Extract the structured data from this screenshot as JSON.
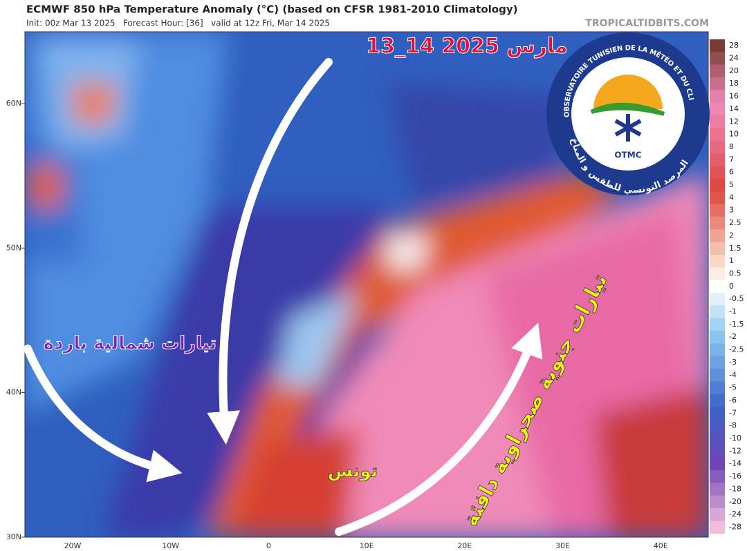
{
  "header": {
    "title": "ECMWF 850 hPa Temperature Anomaly (°C) (based on CFSR 1981-2010 Climatology)",
    "subtitle": "Init: 00z Mar 13 2025   Forecast Hour: [36]   valid at 12z Fri, Mar 14 2025",
    "source": "TROPICALTIDBITS.COM"
  },
  "map": {
    "lat_labels": [
      "60N",
      "50N",
      "40N",
      "30N"
    ],
    "lon_labels": [
      "20W",
      "10W",
      "0",
      "10E",
      "20E",
      "30E",
      "40E"
    ],
    "annotations": {
      "date": "13_14 مارس 2025",
      "cold": "تيارات شمالية باردة",
      "tunisia": "تونس",
      "warm": "تيارات جنوية صحراوية دافئة"
    }
  },
  "colorbar": {
    "labels": [
      "28",
      "24",
      "20",
      "18",
      "16",
      "14",
      "12",
      "10",
      "8",
      "7",
      "6",
      "5",
      "4",
      "3",
      "2.5",
      "2",
      "1.5",
      "1",
      "0.5",
      "0",
      "-0.5",
      "-1",
      "-1.5",
      "-2",
      "-2.5",
      "-3",
      "-4",
      "-5",
      "-6",
      "-7",
      "-8",
      "-10",
      "-12",
      "-14",
      "-16",
      "-18",
      "-20",
      "-24",
      "-28"
    ]
  },
  "logo": {
    "ring_top": "OBSERVATOIRE TUNISIEN DE LA MÉTÉO ET DU CLIMAT",
    "abbr": "OTMC",
    "ring_bottom": "المرصد التونسي للطقس و المناخ"
  }
}
